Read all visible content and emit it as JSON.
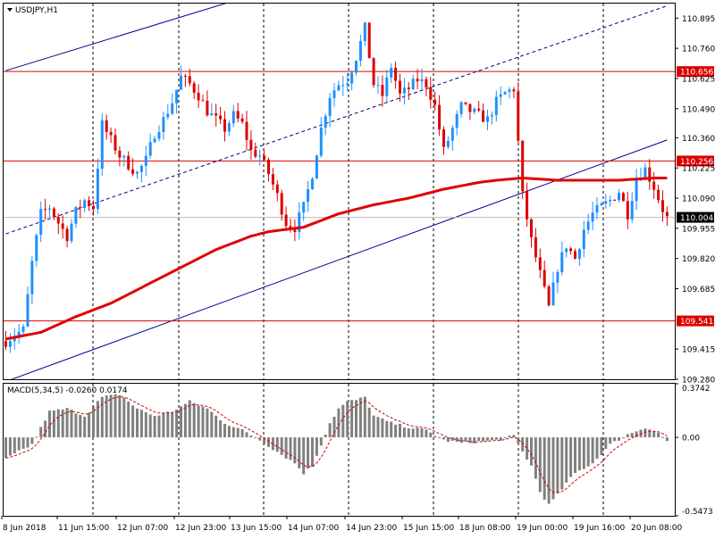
{
  "header": {
    "symbol_label": "USDJPY,H1",
    "macd_label": "MACD(5,34,5) -0.0260 0.0174"
  },
  "colors": {
    "bull": "#1e90ff",
    "bear": "#dd0000",
    "ma": "#e00000",
    "hline": "#dd0000",
    "channel": "#00008b",
    "macd_hist": "#808080",
    "macd_signal": "#d00000",
    "grid": "#000000",
    "current_price_box": "#000000"
  },
  "chart_data": [
    {
      "type": "candlestick",
      "symbol": "USDJPY",
      "timeframe": "H1",
      "ylim": [
        109.28,
        110.96
      ],
      "price_ticks": [
        "110.895",
        "110.760",
        "110.625",
        "110.490",
        "110.360",
        "110.225",
        "110.090",
        "109.955",
        "109.820",
        "109.685",
        "109.415",
        "109.280"
      ],
      "time_labels": [
        "8 Jun 2018",
        "11 Jun 15:00",
        "12 Jun 07:00",
        "12 Jun 23:00",
        "13 Jun 15:00",
        "14 Jun 07:00",
        "14 Jun 23:00",
        "15 Jun 15:00",
        "18 Jun 08:00",
        "19 Jun 00:00",
        "19 Jun 16:00",
        "20 Jun 08:00"
      ],
      "hlines": [
        {
          "label": "110.656",
          "value": 110.656
        },
        {
          "label": "110.256",
          "value": 110.256
        },
        {
          "label": "109.541",
          "value": 109.541
        }
      ],
      "current_price": {
        "label": "110.004",
        "value": 110.004
      },
      "close_path": [
        [
          0,
          109.45
        ],
        [
          2,
          109.48
        ],
        [
          4,
          109.5
        ],
        [
          6,
          109.8
        ],
        [
          8,
          110.02
        ],
        [
          10,
          110.05
        ],
        [
          12,
          109.98
        ],
        [
          14,
          109.92
        ],
        [
          16,
          110.03
        ],
        [
          18,
          110.08
        ],
        [
          20,
          110.05
        ],
        [
          22,
          110.42
        ],
        [
          24,
          110.35
        ],
        [
          26,
          110.28
        ],
        [
          28,
          110.24
        ],
        [
          30,
          110.2
        ],
        [
          32,
          110.26
        ],
        [
          34,
          110.38
        ],
        [
          36,
          110.44
        ],
        [
          38,
          110.52
        ],
        [
          40,
          110.63
        ],
        [
          42,
          110.6
        ],
        [
          44,
          110.55
        ],
        [
          46,
          110.48
        ],
        [
          48,
          110.44
        ],
        [
          50,
          110.4
        ],
        [
          52,
          110.46
        ],
        [
          54,
          110.42
        ],
        [
          56,
          110.3
        ],
        [
          58,
          110.28
        ],
        [
          60,
          110.2
        ],
        [
          62,
          110.1
        ],
        [
          64,
          109.98
        ],
        [
          66,
          109.96
        ],
        [
          68,
          110.05
        ],
        [
          70,
          110.2
        ],
        [
          72,
          110.4
        ],
        [
          74,
          110.55
        ],
        [
          76,
          110.6
        ],
        [
          78,
          110.62
        ],
        [
          80,
          110.72
        ],
        [
          82,
          110.85
        ],
        [
          84,
          110.6
        ],
        [
          86,
          110.55
        ],
        [
          88,
          110.68
        ],
        [
          90,
          110.55
        ],
        [
          92,
          110.58
        ],
        [
          94,
          110.62
        ],
        [
          96,
          110.6
        ],
        [
          98,
          110.5
        ],
        [
          100,
          110.3
        ],
        [
          102,
          110.4
        ],
        [
          104,
          110.5
        ],
        [
          106,
          110.48
        ],
        [
          108,
          110.46
        ],
        [
          110,
          110.44
        ],
        [
          112,
          110.52
        ],
        [
          114,
          110.56
        ],
        [
          116,
          110.58
        ],
        [
          118,
          110.1
        ],
        [
          120,
          109.9
        ],
        [
          122,
          109.75
        ],
        [
          124,
          109.6
        ],
        [
          126,
          109.78
        ],
        [
          128,
          109.88
        ],
        [
          130,
          109.82
        ],
        [
          132,
          109.95
        ],
        [
          134,
          110.02
        ],
        [
          136,
          110.05
        ],
        [
          138,
          110.08
        ],
        [
          140,
          110.12
        ],
        [
          142,
          110.02
        ],
        [
          144,
          110.18
        ],
        [
          146,
          110.22
        ],
        [
          148,
          110.14
        ],
        [
          150,
          110.04
        ],
        [
          151,
          110.0
        ]
      ],
      "ma_path": [
        [
          0,
          109.46
        ],
        [
          8,
          109.49
        ],
        [
          16,
          109.56
        ],
        [
          24,
          109.62
        ],
        [
          32,
          109.7
        ],
        [
          40,
          109.78
        ],
        [
          48,
          109.86
        ],
        [
          56,
          109.92
        ],
        [
          60,
          109.94
        ],
        [
          68,
          109.96
        ],
        [
          76,
          110.02
        ],
        [
          84,
          110.06
        ],
        [
          92,
          110.09
        ],
        [
          100,
          110.13
        ],
        [
          108,
          110.16
        ],
        [
          112,
          110.17
        ],
        [
          118,
          110.18
        ],
        [
          126,
          110.17
        ],
        [
          134,
          110.17
        ],
        [
          140,
          110.17
        ],
        [
          148,
          110.18
        ],
        [
          151,
          110.18
        ]
      ],
      "channel_lines": [
        {
          "style": "solid",
          "from": [
            0,
            110.66
          ],
          "to": [
            60,
            111.02
          ]
        },
        {
          "style": "dashed",
          "from": [
            0,
            109.93
          ],
          "to": [
            151,
            110.95
          ]
        },
        {
          "style": "solid",
          "from": [
            0,
            109.27
          ],
          "to": [
            151,
            110.35
          ]
        }
      ]
    },
    {
      "type": "bar",
      "name": "MACD(5,34,5)",
      "ylim": [
        -0.5473,
        0.3742
      ],
      "ticks": [
        "0.3742",
        "0.00",
        "-0.5473"
      ],
      "main_value": -0.026,
      "signal_value": 0.0174,
      "hist_path": [
        [
          0,
          -0.15
        ],
        [
          6,
          -0.05
        ],
        [
          10,
          0.18
        ],
        [
          14,
          0.2
        ],
        [
          18,
          0.15
        ],
        [
          22,
          0.28
        ],
        [
          26,
          0.3
        ],
        [
          30,
          0.2
        ],
        [
          34,
          0.15
        ],
        [
          38,
          0.18
        ],
        [
          42,
          0.25
        ],
        [
          46,
          0.2
        ],
        [
          50,
          0.1
        ],
        [
          54,
          0.05
        ],
        [
          58,
          -0.02
        ],
        [
          62,
          -0.1
        ],
        [
          66,
          -0.18
        ],
        [
          68,
          -0.25
        ],
        [
          70,
          -0.2
        ],
        [
          72,
          -0.05
        ],
        [
          74,
          0.1
        ],
        [
          76,
          0.2
        ],
        [
          78,
          0.25
        ],
        [
          80,
          0.26
        ],
        [
          82,
          0.28
        ],
        [
          84,
          0.15
        ],
        [
          88,
          0.1
        ],
        [
          92,
          0.07
        ],
        [
          96,
          0.05
        ],
        [
          100,
          -0.02
        ],
        [
          104,
          -0.04
        ],
        [
          108,
          -0.03
        ],
        [
          112,
          -0.02
        ],
        [
          116,
          0.01
        ],
        [
          118,
          -0.1
        ],
        [
          120,
          -0.2
        ],
        [
          122,
          -0.38
        ],
        [
          124,
          -0.47
        ],
        [
          126,
          -0.4
        ],
        [
          128,
          -0.32
        ],
        [
          130,
          -0.25
        ],
        [
          134,
          -0.18
        ],
        [
          138,
          -0.05
        ],
        [
          142,
          0.02
        ],
        [
          146,
          0.07
        ],
        [
          149,
          0.03
        ],
        [
          151,
          -0.026
        ]
      ]
    }
  ]
}
